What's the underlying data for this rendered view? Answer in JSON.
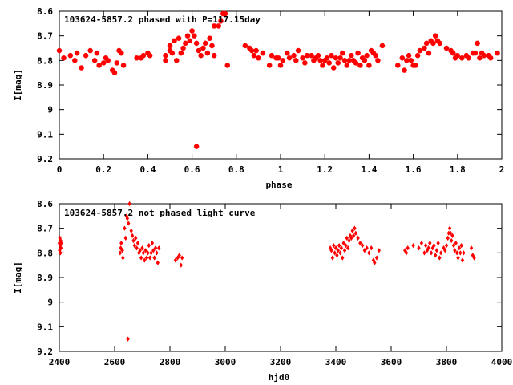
{
  "colors": {
    "points": "#ff0000",
    "axes": "#000000",
    "background": "#ffffff"
  },
  "chart_data": [
    {
      "type": "scatter",
      "title": "103624-5857.2 phased with P=117.15day",
      "xlabel": "phase",
      "ylabel": "I[mag]",
      "xlim": [
        0,
        2
      ],
      "ylim": [
        8.6,
        9.2
      ],
      "y_inverted": true,
      "grid": false,
      "xticks": [
        "0",
        "0.2",
        "0.4",
        "0.6",
        "0.8",
        "1",
        "1.2",
        "1.4",
        "1.6",
        "1.8",
        "2"
      ],
      "yticks": [
        "8.6",
        "8.7",
        "8.8",
        "8.9",
        "9",
        "9.1",
        "9.2"
      ],
      "marker": "star",
      "series": [
        {
          "points": [
            [
              0.0,
              8.76
            ],
            [
              0.02,
              8.79
            ],
            [
              0.05,
              8.78
            ],
            [
              0.07,
              8.8
            ],
            [
              0.08,
              8.77
            ],
            [
              0.1,
              8.83
            ],
            [
              0.12,
              8.78
            ],
            [
              0.14,
              8.76
            ],
            [
              0.16,
              8.8
            ],
            [
              0.17,
              8.77
            ],
            [
              0.18,
              8.82
            ],
            [
              0.2,
              8.81
            ],
            [
              0.21,
              8.79
            ],
            [
              0.22,
              8.8
            ],
            [
              0.24,
              8.84
            ],
            [
              0.25,
              8.85
            ],
            [
              0.26,
              8.81
            ],
            [
              0.27,
              8.76
            ],
            [
              0.28,
              8.77
            ],
            [
              0.29,
              8.82
            ],
            [
              0.35,
              8.79
            ],
            [
              0.37,
              8.79
            ],
            [
              0.38,
              8.78
            ],
            [
              0.4,
              8.77
            ],
            [
              0.41,
              8.78
            ],
            [
              0.48,
              8.8
            ],
            [
              0.48,
              8.78
            ],
            [
              0.5,
              8.76
            ],
            [
              0.5,
              8.74
            ],
            [
              0.51,
              8.77
            ],
            [
              0.52,
              8.72
            ],
            [
              0.53,
              8.8
            ],
            [
              0.54,
              8.71
            ],
            [
              0.55,
              8.77
            ],
            [
              0.56,
              8.75
            ],
            [
              0.57,
              8.73
            ],
            [
              0.58,
              8.7
            ],
            [
              0.59,
              8.72
            ],
            [
              0.6,
              8.68
            ],
            [
              0.61,
              8.7
            ],
            [
              0.62,
              8.73
            ],
            [
              0.63,
              8.76
            ],
            [
              0.64,
              8.78
            ],
            [
              0.65,
              8.75
            ],
            [
              0.66,
              8.73
            ],
            [
              0.67,
              8.77
            ],
            [
              0.68,
              8.71
            ],
            [
              0.69,
              8.74
            ],
            [
              0.7,
              8.78
            ],
            [
              0.7,
              8.66
            ],
            [
              0.72,
              8.66
            ],
            [
              0.73,
              8.64
            ],
            [
              0.74,
              8.61
            ],
            [
              0.75,
              8.61
            ],
            [
              0.76,
              8.82
            ],
            [
              0.62,
              9.15
            ],
            [
              0.84,
              8.74
            ],
            [
              0.86,
              8.75
            ],
            [
              0.87,
              8.76
            ],
            [
              0.88,
              8.78
            ],
            [
              0.89,
              8.76
            ],
            [
              0.9,
              8.79
            ],
            [
              0.92,
              8.77
            ],
            [
              0.95,
              8.82
            ],
            [
              0.96,
              8.78
            ],
            [
              0.98,
              8.79
            ],
            [
              0.99,
              8.79
            ],
            [
              1.0,
              8.82
            ],
            [
              1.01,
              8.8
            ],
            [
              1.03,
              8.77
            ],
            [
              1.04,
              8.79
            ],
            [
              1.06,
              8.78
            ],
            [
              1.07,
              8.8
            ],
            [
              1.08,
              8.76
            ],
            [
              1.1,
              8.79
            ],
            [
              1.11,
              8.81
            ],
            [
              1.12,
              8.78
            ],
            [
              1.14,
              8.78
            ],
            [
              1.15,
              8.8
            ],
            [
              1.16,
              8.79
            ],
            [
              1.17,
              8.78
            ],
            [
              1.18,
              8.8
            ],
            [
              1.19,
              8.82
            ],
            [
              1.2,
              8.8
            ],
            [
              1.21,
              8.79
            ],
            [
              1.22,
              8.81
            ],
            [
              1.23,
              8.78
            ],
            [
              1.24,
              8.83
            ],
            [
              1.25,
              8.79
            ],
            [
              1.26,
              8.81
            ],
            [
              1.27,
              8.79
            ],
            [
              1.28,
              8.77
            ],
            [
              1.29,
              8.8
            ],
            [
              1.3,
              8.82
            ],
            [
              1.31,
              8.8
            ],
            [
              1.32,
              8.78
            ],
            [
              1.33,
              8.8
            ],
            [
              1.34,
              8.81
            ],
            [
              1.35,
              8.77
            ],
            [
              1.36,
              8.82
            ],
            [
              1.37,
              8.79
            ],
            [
              1.38,
              8.8
            ],
            [
              1.39,
              8.78
            ],
            [
              1.4,
              8.82
            ],
            [
              1.41,
              8.76
            ],
            [
              1.42,
              8.77
            ],
            [
              1.43,
              8.78
            ],
            [
              1.44,
              8.8
            ],
            [
              1.46,
              8.74
            ],
            [
              1.53,
              8.82
            ],
            [
              1.55,
              8.79
            ],
            [
              1.56,
              8.84
            ],
            [
              1.57,
              8.8
            ],
            [
              1.58,
              8.78
            ],
            [
              1.59,
              8.8
            ],
            [
              1.6,
              8.82
            ],
            [
              1.61,
              8.82
            ],
            [
              1.62,
              8.78
            ],
            [
              1.63,
              8.76
            ],
            [
              1.65,
              8.75
            ],
            [
              1.66,
              8.73
            ],
            [
              1.67,
              8.77
            ],
            [
              1.68,
              8.72
            ],
            [
              1.69,
              8.73
            ],
            [
              1.7,
              8.7
            ],
            [
              1.71,
              8.72
            ],
            [
              1.72,
              8.73
            ],
            [
              1.75,
              8.75
            ],
            [
              1.77,
              8.76
            ],
            [
              1.78,
              8.77
            ],
            [
              1.79,
              8.79
            ],
            [
              1.8,
              8.78
            ],
            [
              1.82,
              8.79
            ],
            [
              1.84,
              8.78
            ],
            [
              1.85,
              8.79
            ],
            [
              1.87,
              8.77
            ],
            [
              1.88,
              8.77
            ],
            [
              1.89,
              8.73
            ],
            [
              1.9,
              8.79
            ],
            [
              1.91,
              8.77
            ],
            [
              1.92,
              8.78
            ],
            [
              1.94,
              8.78
            ],
            [
              1.95,
              8.79
            ],
            [
              1.98,
              8.77
            ]
          ]
        }
      ]
    },
    {
      "type": "scatter",
      "title": "103624-5857.2 not phased light curve",
      "xlabel": "hjd0",
      "ylabel": "I[mag]",
      "xlim": [
        2400,
        4000
      ],
      "ylim": [
        8.6,
        9.2
      ],
      "y_inverted": true,
      "grid": false,
      "xticks": [
        "2400",
        "2600",
        "2800",
        "3000",
        "3200",
        "3400",
        "3600",
        "3800",
        "4000"
      ],
      "yticks": [
        "8.6",
        "8.7",
        "8.8",
        "8.9",
        "9",
        "9.1",
        "9.2"
      ],
      "marker": "diamond",
      "series": [
        {
          "points": [
            [
              2400,
              8.76
            ],
            [
              2401,
              8.79
            ],
            [
              2402,
              8.74
            ],
            [
              2403,
              8.77
            ],
            [
              2404,
              8.8
            ],
            [
              2405,
              8.75
            ],
            [
              2406,
              8.78
            ],
            [
              2407,
              8.76
            ],
            [
              2620,
              8.8
            ],
            [
              2622,
              8.78
            ],
            [
              2624,
              8.76
            ],
            [
              2628,
              8.79
            ],
            [
              2630,
              8.82
            ],
            [
              2636,
              8.7
            ],
            [
              2640,
              8.74
            ],
            [
              2643,
              8.65
            ],
            [
              2646,
              8.66
            ],
            [
              2650,
              8.68
            ],
            [
              2654,
              8.6
            ],
            [
              2660,
              8.71
            ],
            [
              2664,
              8.73
            ],
            [
              2668,
              8.75
            ],
            [
              2672,
              8.77
            ],
            [
              2676,
              8.74
            ],
            [
              2680,
              8.78
            ],
            [
              2684,
              8.76
            ],
            [
              2688,
              8.8
            ],
            [
              2692,
              8.79
            ],
            [
              2696,
              8.82
            ],
            [
              2700,
              8.78
            ],
            [
              2704,
              8.8
            ],
            [
              2708,
              8.83
            ],
            [
              2712,
              8.79
            ],
            [
              2716,
              8.82
            ],
            [
              2720,
              8.8
            ],
            [
              2724,
              8.77
            ],
            [
              2728,
              8.82
            ],
            [
              2732,
              8.8
            ],
            [
              2736,
              8.76
            ],
            [
              2740,
              8.79
            ],
            [
              2744,
              8.82
            ],
            [
              2748,
              8.78
            ],
            [
              2752,
              8.8
            ],
            [
              2756,
              8.84
            ],
            [
              2760,
              8.78
            ],
            [
              2648,
              9.15
            ],
            [
              2820,
              8.83
            ],
            [
              2828,
              8.82
            ],
            [
              2834,
              8.81
            ],
            [
              2840,
              8.85
            ],
            [
              2844,
              8.82
            ],
            [
              3380,
              8.78
            ],
            [
              3384,
              8.79
            ],
            [
              3388,
              8.82
            ],
            [
              3392,
              8.77
            ],
            [
              3396,
              8.8
            ],
            [
              3400,
              8.78
            ],
            [
              3404,
              8.81
            ],
            [
              3408,
              8.79
            ],
            [
              3412,
              8.77
            ],
            [
              3416,
              8.8
            ],
            [
              3420,
              8.78
            ],
            [
              3424,
              8.82
            ],
            [
              3428,
              8.76
            ],
            [
              3432,
              8.79
            ],
            [
              3436,
              8.77
            ],
            [
              3440,
              8.74
            ],
            [
              3444,
              8.78
            ],
            [
              3448,
              8.75
            ],
            [
              3452,
              8.73
            ],
            [
              3456,
              8.74
            ],
            [
              3460,
              8.71
            ],
            [
              3464,
              8.73
            ],
            [
              3468,
              8.7
            ],
            [
              3472,
              8.72
            ],
            [
              3480,
              8.74
            ],
            [
              3488,
              8.76
            ],
            [
              3496,
              8.77
            ],
            [
              3504,
              8.79
            ],
            [
              3512,
              8.78
            ],
            [
              3520,
              8.8
            ],
            [
              3528,
              8.78
            ],
            [
              3536,
              8.83
            ],
            [
              3540,
              8.84
            ],
            [
              3548,
              8.82
            ],
            [
              3556,
              8.79
            ],
            [
              3650,
              8.79
            ],
            [
              3655,
              8.8
            ],
            [
              3660,
              8.78
            ],
            [
              3680,
              8.77
            ],
            [
              3700,
              8.78
            ],
            [
              3710,
              8.76
            ],
            [
              3720,
              8.8
            ],
            [
              3725,
              8.77
            ],
            [
              3730,
              8.79
            ],
            [
              3735,
              8.78
            ],
            [
              3740,
              8.76
            ],
            [
              3745,
              8.8
            ],
            [
              3750,
              8.78
            ],
            [
              3755,
              8.77
            ],
            [
              3760,
              8.81
            ],
            [
              3765,
              8.79
            ],
            [
              3770,
              8.76
            ],
            [
              3775,
              8.82
            ],
            [
              3780,
              8.8
            ],
            [
              3790,
              8.78
            ],
            [
              3795,
              8.79
            ],
            [
              3800,
              8.77
            ],
            [
              3805,
              8.74
            ],
            [
              3808,
              8.72
            ],
            [
              3812,
              8.7
            ],
            [
              3815,
              8.72
            ],
            [
              3818,
              8.75
            ],
            [
              3822,
              8.73
            ],
            [
              3826,
              8.77
            ],
            [
              3830,
              8.79
            ],
            [
              3834,
              8.76
            ],
            [
              3838,
              8.8
            ],
            [
              3842,
              8.82
            ],
            [
              3846,
              8.78
            ],
            [
              3850,
              8.8
            ],
            [
              3854,
              8.77
            ],
            [
              3858,
              8.83
            ],
            [
              3862,
              8.8
            ],
            [
              3890,
              8.78
            ],
            [
              3895,
              8.81
            ],
            [
              3900,
              8.82
            ]
          ]
        }
      ]
    }
  ]
}
